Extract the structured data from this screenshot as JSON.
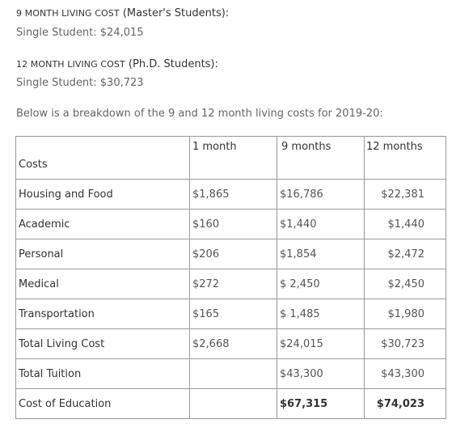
{
  "nine_month": {
    "heading_caps": "9 MONTH LIVING COST",
    "heading_rest": " (Master's Students):",
    "line": "Single Student: $24,015"
  },
  "twelve_month": {
    "heading_caps": "12 MONTH LIVING COST",
    "heading_rest": " (Ph.D. Students):",
    "line": "Single Student: $30,723"
  },
  "intro": "Below is a breakdown of the 9 and 12 month living costs for 2019-20:",
  "table": {
    "headers": [
      "Costs",
      "1 month",
      "9 months",
      "12 months"
    ],
    "rows": [
      {
        "label": "Housing and Food",
        "m1": "$1,865",
        "m9": "$16,786",
        "m12": "$22,381"
      },
      {
        "label": "Academic",
        "m1": "$160",
        "m9": "$1,440",
        "m12": "$1,440"
      },
      {
        "label": "Personal",
        "m1": "$206",
        "m9": "$1,854",
        "m12": "$2,472"
      },
      {
        "label": "Medical",
        "m1": "$272",
        "m9": "$ 2,450",
        "m12": "$2,450"
      },
      {
        "label": "Transportation",
        "m1": "$165",
        "m9": "$ 1,485",
        "m12": "$1,980"
      },
      {
        "label": "Total Living Cost",
        "m1": "$2,668",
        "m9": "$24,015",
        "m12": "$30,723"
      },
      {
        "label": "Total Tuition",
        "m1": "",
        "m9": "$43,300",
        "m12": "$43,300"
      },
      {
        "label": "Cost of Education",
        "m1": "",
        "m9": "$67,315",
        "m12": "$74,023"
      }
    ]
  }
}
